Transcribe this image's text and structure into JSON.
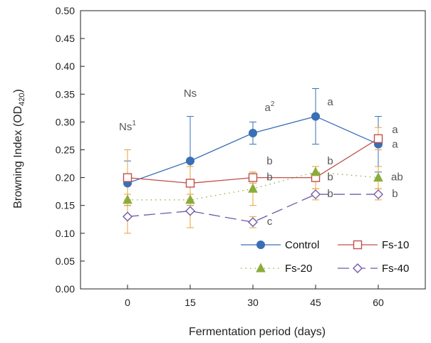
{
  "chart_data": {
    "type": "line",
    "xlabel": "Fermentation period (days)",
    "ylabel": {
      "main": "Browning Index (OD",
      "sub": "420",
      "end": ")"
    },
    "x": [
      0,
      15,
      30,
      45,
      60
    ],
    "xlim": [
      -11.25,
      71.25
    ],
    "ylim": [
      0.0,
      0.5
    ],
    "x_ticks": [
      "0",
      "15",
      "30",
      "45",
      "60"
    ],
    "y_ticks": [
      "0.00",
      "0.05",
      "0.10",
      "0.15",
      "0.20",
      "0.25",
      "0.30",
      "0.35",
      "0.40",
      "0.45",
      "0.50"
    ],
    "grid": false,
    "legend_position": "bottom-right",
    "series": [
      {
        "name": "Control",
        "color": "#3a6fb5",
        "line": "solid",
        "marker": "filled-circle",
        "values": [
          0.19,
          0.23,
          0.28,
          0.31,
          0.26
        ],
        "error": [
          0.04,
          0.08,
          0.02,
          0.05,
          0.05
        ]
      },
      {
        "name": "Fs-10",
        "color": "#c0504d",
        "line": "solid",
        "marker": "open-square",
        "values": [
          0.2,
          0.19,
          0.2,
          0.2,
          0.27
        ],
        "error": [
          0.05,
          0.03,
          0.01,
          0.02,
          0.02
        ]
      },
      {
        "name": "Fs-20",
        "color": "#8aac3c",
        "line": "dotted",
        "marker": "filled-triangle",
        "values": [
          0.16,
          0.16,
          0.18,
          0.21,
          0.2
        ],
        "error": [
          0.01,
          0.01,
          0.03,
          0.01,
          0.02
        ]
      },
      {
        "name": "Fs-40",
        "color": "#6f5aa8",
        "line": "dashed",
        "marker": "open-diamond",
        "values": [
          0.13,
          0.14,
          0.12,
          0.17,
          0.17
        ],
        "error": [
          0.03,
          0.03,
          0.01,
          0.01,
          0.01
        ]
      }
    ],
    "error_bar_color": "#e8a33a",
    "annotations": [
      {
        "text": "Ns",
        "sup": "1",
        "x": 0,
        "y": 0.285
      },
      {
        "text": "Ns",
        "sup": "",
        "x": 15,
        "y": 0.345
      },
      {
        "text": "a",
        "sup": "2",
        "x": 34,
        "y": 0.32
      },
      {
        "text": "a",
        "sup": "",
        "x": 48.5,
        "y": 0.33
      },
      {
        "text": "a",
        "sup": "",
        "x": 64,
        "y": 0.28
      },
      {
        "text": "a",
        "sup": "",
        "x": 64,
        "y": 0.254
      },
      {
        "text": "b",
        "sup": "",
        "x": 34,
        "y": 0.224
      },
      {
        "text": "b",
        "sup": "",
        "x": 34,
        "y": 0.195
      },
      {
        "text": "b",
        "sup": "",
        "x": 48.5,
        "y": 0.224
      },
      {
        "text": "b",
        "sup": "",
        "x": 48.5,
        "y": 0.195
      },
      {
        "text": "b",
        "sup": "",
        "x": 48.5,
        "y": 0.165
      },
      {
        "text": "ab",
        "sup": "",
        "x": 64.5,
        "y": 0.195
      },
      {
        "text": "b",
        "sup": "",
        "x": 64,
        "y": 0.165
      },
      {
        "text": "c",
        "sup": "",
        "x": 34,
        "y": 0.115
      }
    ]
  }
}
